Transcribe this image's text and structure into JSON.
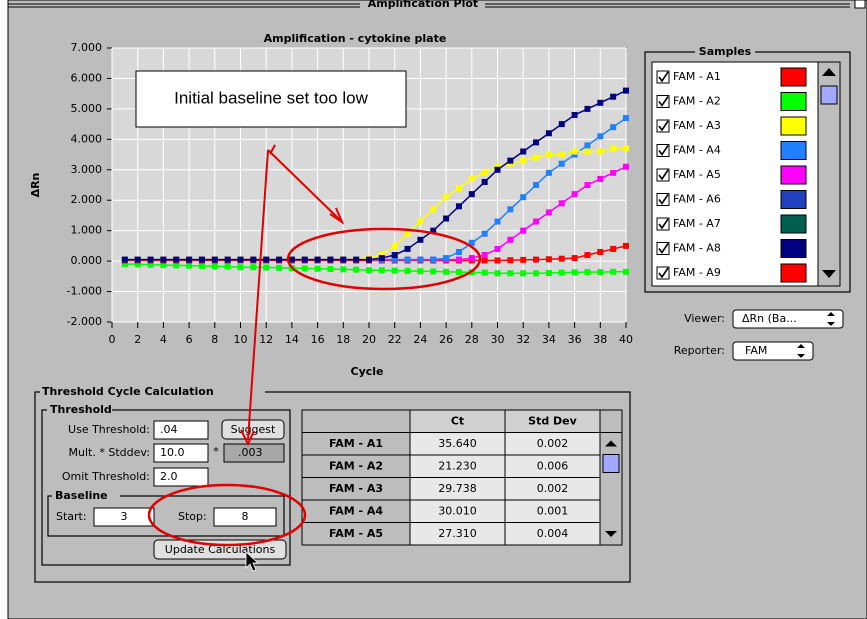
{
  "window": {
    "title": "Amplification Plot"
  },
  "chart_data": {
    "type": "line",
    "title": "Amplification - cytokine plate",
    "x_label": "Cycle",
    "y_label": "ΔRn",
    "annotation": "Initial baseline set too low",
    "x": [
      1,
      2,
      3,
      4,
      5,
      6,
      7,
      8,
      9,
      10,
      11,
      12,
      13,
      14,
      15,
      16,
      17,
      18,
      19,
      20,
      21,
      22,
      23,
      24,
      25,
      26,
      27,
      28,
      29,
      30,
      31,
      32,
      33,
      34,
      35,
      36,
      37,
      38,
      39,
      40
    ],
    "xlim": [
      0,
      40
    ],
    "xticks": [
      0,
      2,
      4,
      6,
      8,
      10,
      12,
      14,
      16,
      18,
      20,
      22,
      24,
      26,
      28,
      30,
      32,
      34,
      36,
      38,
      40
    ],
    "ylim": [
      -2,
      7
    ],
    "yticks": [
      {
        "value": 7,
        "label": "7.000"
      },
      {
        "value": 6,
        "label": "6.000"
      },
      {
        "value": 5,
        "label": "5.000"
      },
      {
        "value": 4,
        "label": "4.000"
      },
      {
        "value": 3,
        "label": "3.000"
      },
      {
        "value": 2,
        "label": "2.000"
      },
      {
        "value": 1,
        "label": "1.000"
      },
      {
        "value": 0,
        "label": "0.000"
      },
      {
        "value": -1,
        "label": "-1.000"
      },
      {
        "value": -2,
        "label": "-2.000"
      }
    ],
    "grid": true,
    "series": [
      {
        "color": "#00ff00",
        "values": [
          -0.1,
          -0.1,
          -0.12,
          -0.13,
          -0.14,
          -0.15,
          -0.16,
          -0.17,
          -0.18,
          -0.2,
          -0.2,
          -0.21,
          -0.22,
          -0.23,
          -0.24,
          -0.25,
          -0.26,
          -0.27,
          -0.28,
          -0.3,
          -0.3,
          -0.31,
          -0.32,
          -0.33,
          -0.34,
          -0.35,
          -0.36,
          -0.37,
          -0.38,
          -0.4,
          -0.4,
          -0.4,
          -0.4,
          -0.39,
          -0.38,
          -0.37,
          -0.36,
          -0.36,
          -0.35,
          -0.35
        ]
      },
      {
        "color": "#ff0000",
        "values": [
          0.02,
          0.02,
          0.02,
          0.02,
          0.02,
          0.02,
          0.02,
          0.02,
          0.02,
          0.02,
          0.02,
          0.02,
          0.02,
          0.02,
          0.02,
          0.02,
          0.02,
          0.02,
          0.02,
          0.02,
          0.02,
          0.02,
          0.02,
          0.02,
          0.02,
          0.02,
          0.02,
          0.02,
          0.02,
          0.02,
          0.03,
          0.04,
          0.05,
          0.06,
          0.08,
          0.1,
          0.2,
          0.3,
          0.4,
          0.5
        ]
      },
      {
        "color": "#ff00ff",
        "values": [
          0.05,
          0.05,
          0.05,
          0.05,
          0.05,
          0.05,
          0.05,
          0.05,
          0.05,
          0.05,
          0.05,
          0.05,
          0.05,
          0.05,
          0.05,
          0.05,
          0.05,
          0.05,
          0.05,
          0.05,
          0.05,
          0.05,
          0.05,
          0.05,
          0.05,
          0.05,
          0.05,
          0.1,
          0.2,
          0.4,
          0.7,
          1.0,
          1.3,
          1.6,
          1.9,
          2.2,
          2.5,
          2.7,
          2.9,
          3.1
        ]
      },
      {
        "color": "#2080ff",
        "values": [
          0.05,
          0.05,
          0.05,
          0.05,
          0.05,
          0.05,
          0.05,
          0.05,
          0.05,
          0.05,
          0.05,
          0.05,
          0.05,
          0.05,
          0.05,
          0.05,
          0.05,
          0.05,
          0.05,
          0.05,
          0.05,
          0.05,
          0.05,
          0.05,
          0.05,
          0.1,
          0.3,
          0.6,
          0.9,
          1.3,
          1.7,
          2.1,
          2.5,
          2.9,
          3.2,
          3.5,
          3.8,
          4.1,
          4.4,
          4.7
        ]
      },
      {
        "color": "#ffff00",
        "values": [
          0.05,
          0.05,
          0.05,
          0.05,
          0.05,
          0.05,
          0.05,
          0.05,
          0.05,
          0.05,
          0.05,
          0.05,
          0.05,
          0.05,
          0.05,
          0.05,
          0.05,
          0.05,
          0.05,
          0.1,
          0.2,
          0.5,
          0.9,
          1.3,
          1.7,
          2.1,
          2.4,
          2.7,
          2.9,
          3.1,
          3.2,
          3.3,
          3.4,
          3.5,
          3.5,
          3.6,
          3.6,
          3.6,
          3.7,
          3.7
        ]
      },
      {
        "color": "#000080",
        "values": [
          0.05,
          0.05,
          0.05,
          0.05,
          0.05,
          0.05,
          0.05,
          0.05,
          0.05,
          0.05,
          0.05,
          0.05,
          0.05,
          0.05,
          0.05,
          0.05,
          0.05,
          0.05,
          0.05,
          0.05,
          0.1,
          0.2,
          0.4,
          0.7,
          1.0,
          1.4,
          1.8,
          2.2,
          2.6,
          3.0,
          3.3,
          3.6,
          3.9,
          4.2,
          4.5,
          4.8,
          5.0,
          5.2,
          5.4,
          5.6
        ]
      }
    ]
  },
  "samples": {
    "title": "Samples",
    "items": [
      {
        "label": "FAM - A1",
        "color": "#ff0000",
        "checked": true
      },
      {
        "label": "FAM - A2",
        "color": "#00ff00",
        "checked": true
      },
      {
        "label": "FAM - A3",
        "color": "#ffff00",
        "checked": true
      },
      {
        "label": "FAM - A4",
        "color": "#2080ff",
        "checked": true
      },
      {
        "label": "FAM - A5",
        "color": "#ff00ff",
        "checked": true
      },
      {
        "label": "FAM - A6",
        "color": "#2040c0",
        "checked": true
      },
      {
        "label": "FAM - A7",
        "color": "#006050",
        "checked": true
      },
      {
        "label": "FAM - A8",
        "color": "#000080",
        "checked": true
      },
      {
        "label": "FAM - A9",
        "color": "#ff0000",
        "checked": true
      }
    ]
  },
  "viewer": {
    "label": "Viewer:",
    "value": "ΔRn (Ba..."
  },
  "reporter": {
    "label": "Reporter:",
    "value": "FAM"
  },
  "threshold_calc": {
    "title": "Threshold Cycle Calculation",
    "threshold": {
      "title": "Threshold",
      "use_label": "Use Threshold:",
      "use_value": ".04",
      "suggest": "Suggest",
      "mult_label": "Mult. * Stddev:",
      "mult_value": "10.0",
      "times": "*",
      "mult_result": ".003",
      "omit_label": "Omit Threshold:",
      "omit_value": "2.0"
    },
    "baseline": {
      "title": "Baseline",
      "start_label": "Start:",
      "start": "3",
      "stop_label": "Stop:",
      "stop": "8"
    },
    "update": "Update Calculations"
  },
  "table": {
    "headers": [
      "Ct",
      "Std Dev"
    ],
    "rows": [
      [
        "FAM - A1",
        "35.640",
        "0.002"
      ],
      [
        "FAM - A2",
        "21.230",
        "0.006"
      ],
      [
        "FAM - A3",
        "29.738",
        "0.002"
      ],
      [
        "FAM - A4",
        "30.010",
        "0.001"
      ],
      [
        "FAM - A5",
        "27.310",
        "0.004"
      ]
    ]
  }
}
